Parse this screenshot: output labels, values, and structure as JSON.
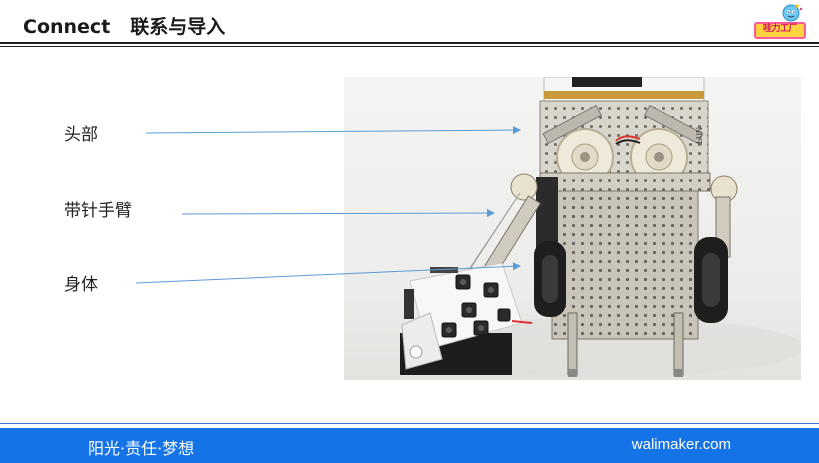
{
  "header": {
    "title_en": "Connect",
    "title_cn": "联系与导入",
    "logo_text": "哇力工厂"
  },
  "labels": {
    "head": "头部",
    "arm": "带针手臂",
    "body": "身体"
  },
  "board": {
    "silk_text": "NIYT"
  },
  "footer": {
    "slogan": "阳光·责任·梦想",
    "site": "walimaker.com"
  },
  "colors": {
    "footer_bar": "#1473e6",
    "arrow": "#5b9bd5",
    "rule": "#1e1e1e"
  }
}
